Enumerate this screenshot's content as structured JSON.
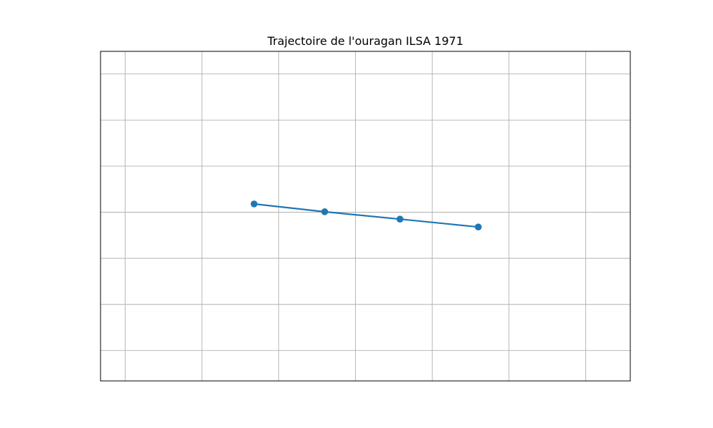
{
  "chart_data": {
    "type": "line",
    "title": "Trajectoire de l'ouragan ILSA 1971",
    "xlabel": "",
    "ylabel": "",
    "xlim": [
      0,
      3.45
    ],
    "ylim": [
      0,
      7.15
    ],
    "grid": true,
    "x_gridlines": [
      0.16,
      0.66,
      1.16,
      1.66,
      2.16,
      2.66,
      3.16
    ],
    "y_gridlines": [
      0.66,
      1.66,
      2.66,
      3.66,
      4.66,
      5.66,
      6.66
    ],
    "series": [
      {
        "x": [
          1.0,
          1.46,
          1.95,
          2.46
        ],
        "y": [
          3.84,
          3.67,
          3.51,
          3.34
        ],
        "color": "#1f77b4"
      }
    ]
  }
}
